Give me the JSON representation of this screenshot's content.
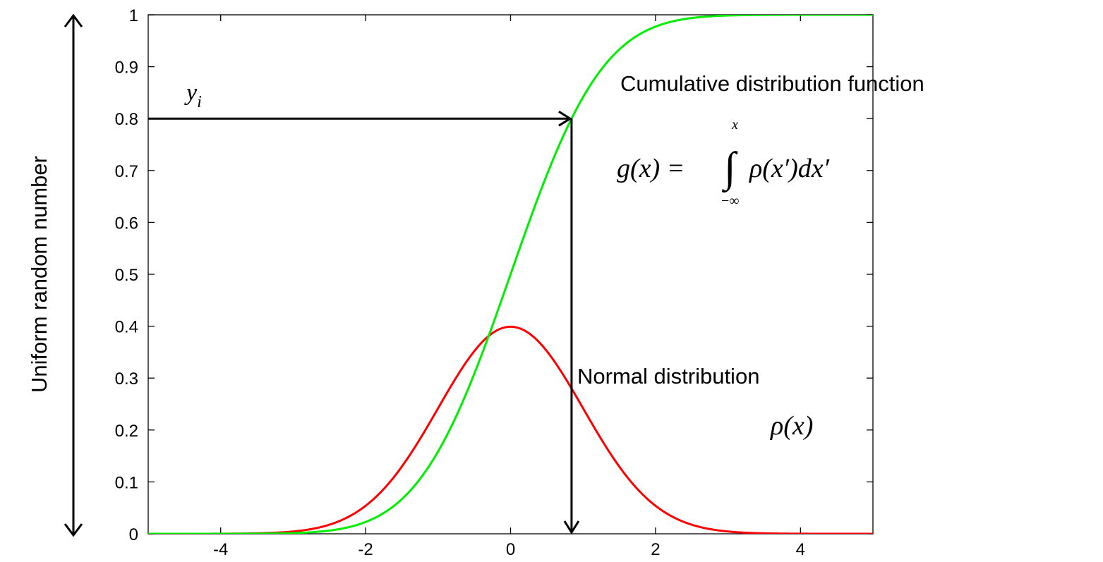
{
  "chart_data": {
    "type": "line",
    "ylabel": "Uniform random number",
    "xlim": [
      -5,
      5
    ],
    "ylim": [
      0,
      1
    ],
    "x_ticks": [
      -4,
      -2,
      0,
      2,
      4
    ],
    "x_tick_labels": [
      "-4",
      "-2",
      "0",
      "2",
      "4"
    ],
    "y_ticks": [
      0,
      0.1,
      0.2,
      0.3,
      0.4,
      0.5,
      0.6,
      0.7,
      0.8,
      0.9,
      1
    ],
    "y_tick_labels": [
      "0",
      "0.1",
      "0.2",
      "0.3",
      "0.4",
      "0.5",
      "0.6",
      "0.7",
      "0.8",
      "0.9",
      "1"
    ],
    "grid": false,
    "series": [
      {
        "name": "Normal distribution",
        "color": "#ff0000",
        "function": "standard normal pdf",
        "x": [
          -5,
          -4.5,
          -4,
          -3.5,
          -3,
          -2.5,
          -2,
          -1.5,
          -1,
          -0.5,
          0,
          0.5,
          1,
          1.5,
          2,
          2.5,
          3,
          3.5,
          4,
          4.5,
          5
        ],
        "y": [
          1.5e-06,
          1.6e-05,
          0.000134,
          0.00087,
          0.0044,
          0.0175,
          0.054,
          0.1295,
          0.242,
          0.352,
          0.3989,
          0.352,
          0.242,
          0.1295,
          0.054,
          0.0175,
          0.0044,
          0.00087,
          0.000134,
          1.6e-05,
          1.5e-06
        ]
      },
      {
        "name": "Cumulative distribution function",
        "color": "#00ee00",
        "function": "standard normal cdf",
        "x": [
          -5,
          -4.5,
          -4,
          -3.5,
          -3,
          -2.5,
          -2,
          -1.5,
          -1,
          -0.5,
          0,
          0.5,
          1,
          1.5,
          2,
          2.5,
          3,
          3.5,
          4,
          4.5,
          5
        ],
        "y": [
          3e-07,
          3.4e-06,
          3.17e-05,
          0.00023,
          0.00135,
          0.0062,
          0.0228,
          0.0668,
          0.1587,
          0.3085,
          0.5,
          0.6915,
          0.8413,
          0.9332,
          0.9772,
          0.9938,
          0.99865,
          0.99977,
          0.99997,
          0.999997,
          1
        ]
      }
    ],
    "mapping_example": {
      "y_value": 0.8,
      "x_value": 0.8416
    },
    "annotations": {
      "yi_label": "y",
      "yi_subscript": "i",
      "cdf_title": "Cumulative distribution function",
      "cdf_formula_lhs": "g(x) =",
      "cdf_formula_upper": "x",
      "cdf_formula_lower": "−∞",
      "cdf_formula_integral": "∫",
      "cdf_formula_integrand": "ρ(x′)dx′",
      "pdf_title": "Normal distribution",
      "pdf_formula": "ρ(x)"
    }
  }
}
